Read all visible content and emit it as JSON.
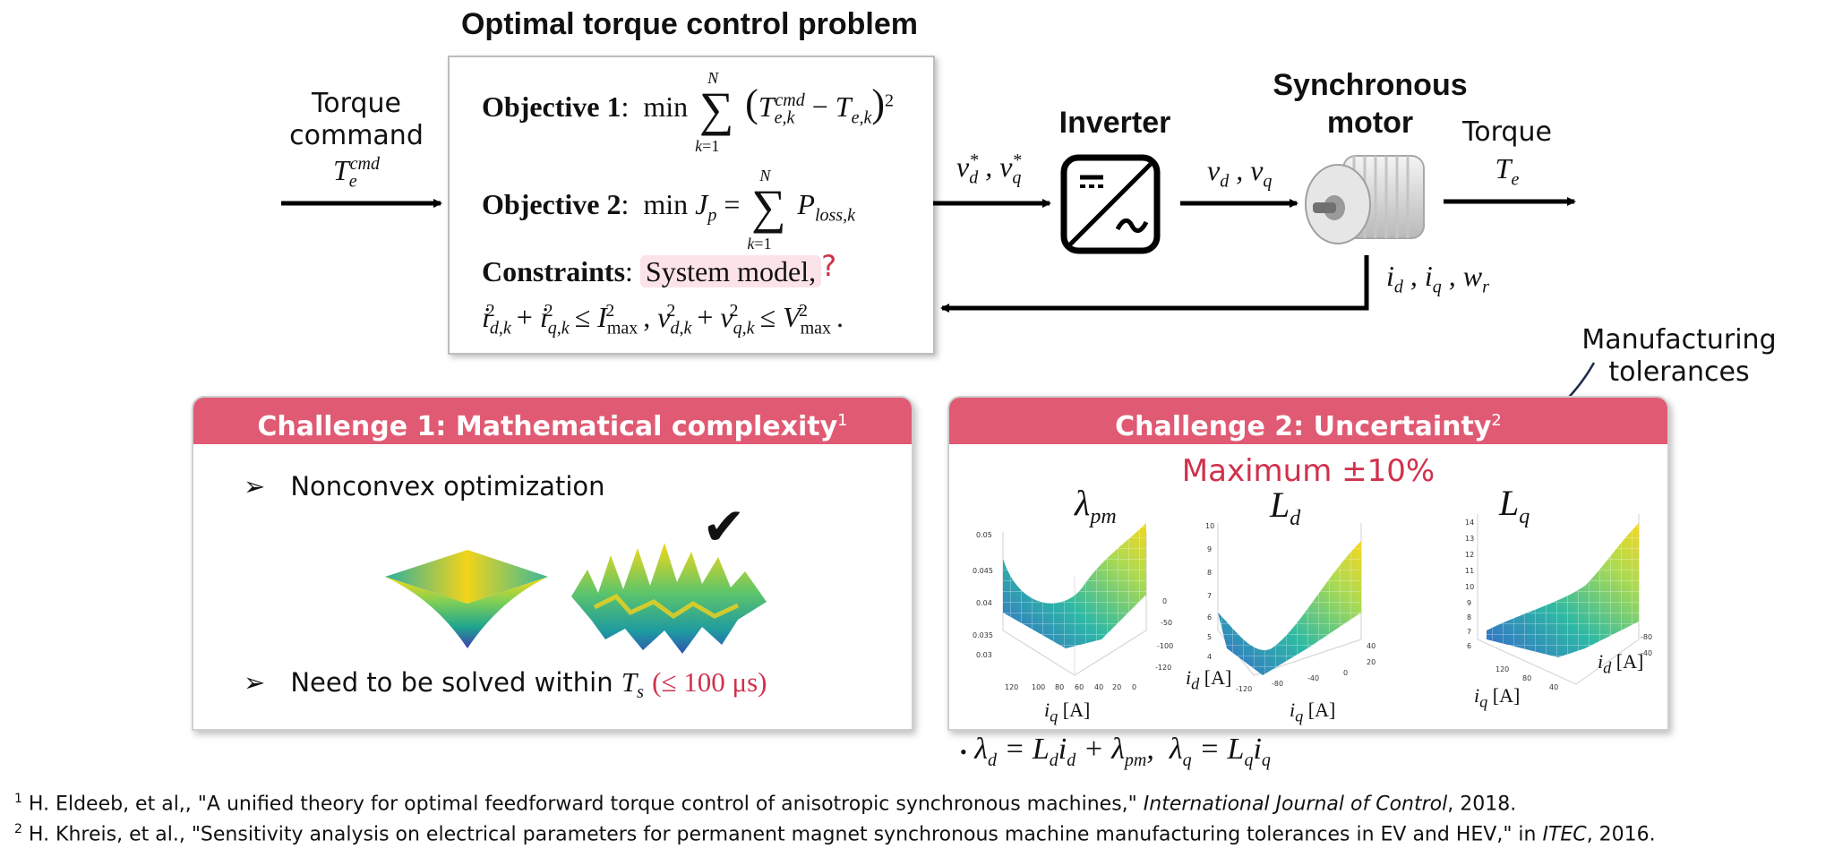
{
  "diagram": {
    "title": "Optimal torque control problem",
    "objective1_label": "Objective 1",
    "objective2_label": "Objective 2",
    "constraints_label": "Constraints",
    "system_model": "System model,",
    "unknown_mark": "?",
    "torque_command_line1": "Torque",
    "torque_command_line2": "command",
    "inverter_label": "Inverter",
    "motor_label_line1": "Synchronous",
    "motor_label_line2": "motor",
    "torque_output_label": "Torque",
    "manufacturing_line1": "Manufacturing",
    "manufacturing_line2": "tolerances"
  },
  "challenge1": {
    "title": "Challenge 1: Mathematical complexity",
    "ref": "1",
    "bullet1": "Nonconvex optimization",
    "bullet2_prefix": "Need to be solved within",
    "bullet2_limit": "(≤ 100 μs)",
    "check": "✔"
  },
  "challenge2": {
    "title": "Challenge 2: Uncertainty",
    "ref": "2",
    "maximum": "Maximum ±10%",
    "plots": [
      {
        "title": "λ",
        "sub": "pm"
      },
      {
        "title": "L",
        "sub": "d"
      },
      {
        "title": "L",
        "sub": "q"
      }
    ],
    "axis_id": "[A]",
    "axis_iq": "[A]"
  },
  "footnotes": {
    "f1_num": "1",
    "f1_text": " H. Eldeeb, et al,, \"A unified theory for optimal feedforward torque control of anisotropic synchronous machines,\" ",
    "f1_venue": "International Journal of Control",
    "f1_year": ", 2018.",
    "f2_num": "2",
    "f2_text": " H. Khreis, et al., \"Sensitivity analysis on electrical parameters for permanent magnet synchronous machine manufacturing tolerances in EV and HEV,\" in ",
    "f2_venue": "ITEC",
    "f2_year": ", 2016."
  },
  "colors": {
    "accent": "#e05a73",
    "highlight": "#d0314c",
    "system_model_bg": "#fbe3e7"
  }
}
